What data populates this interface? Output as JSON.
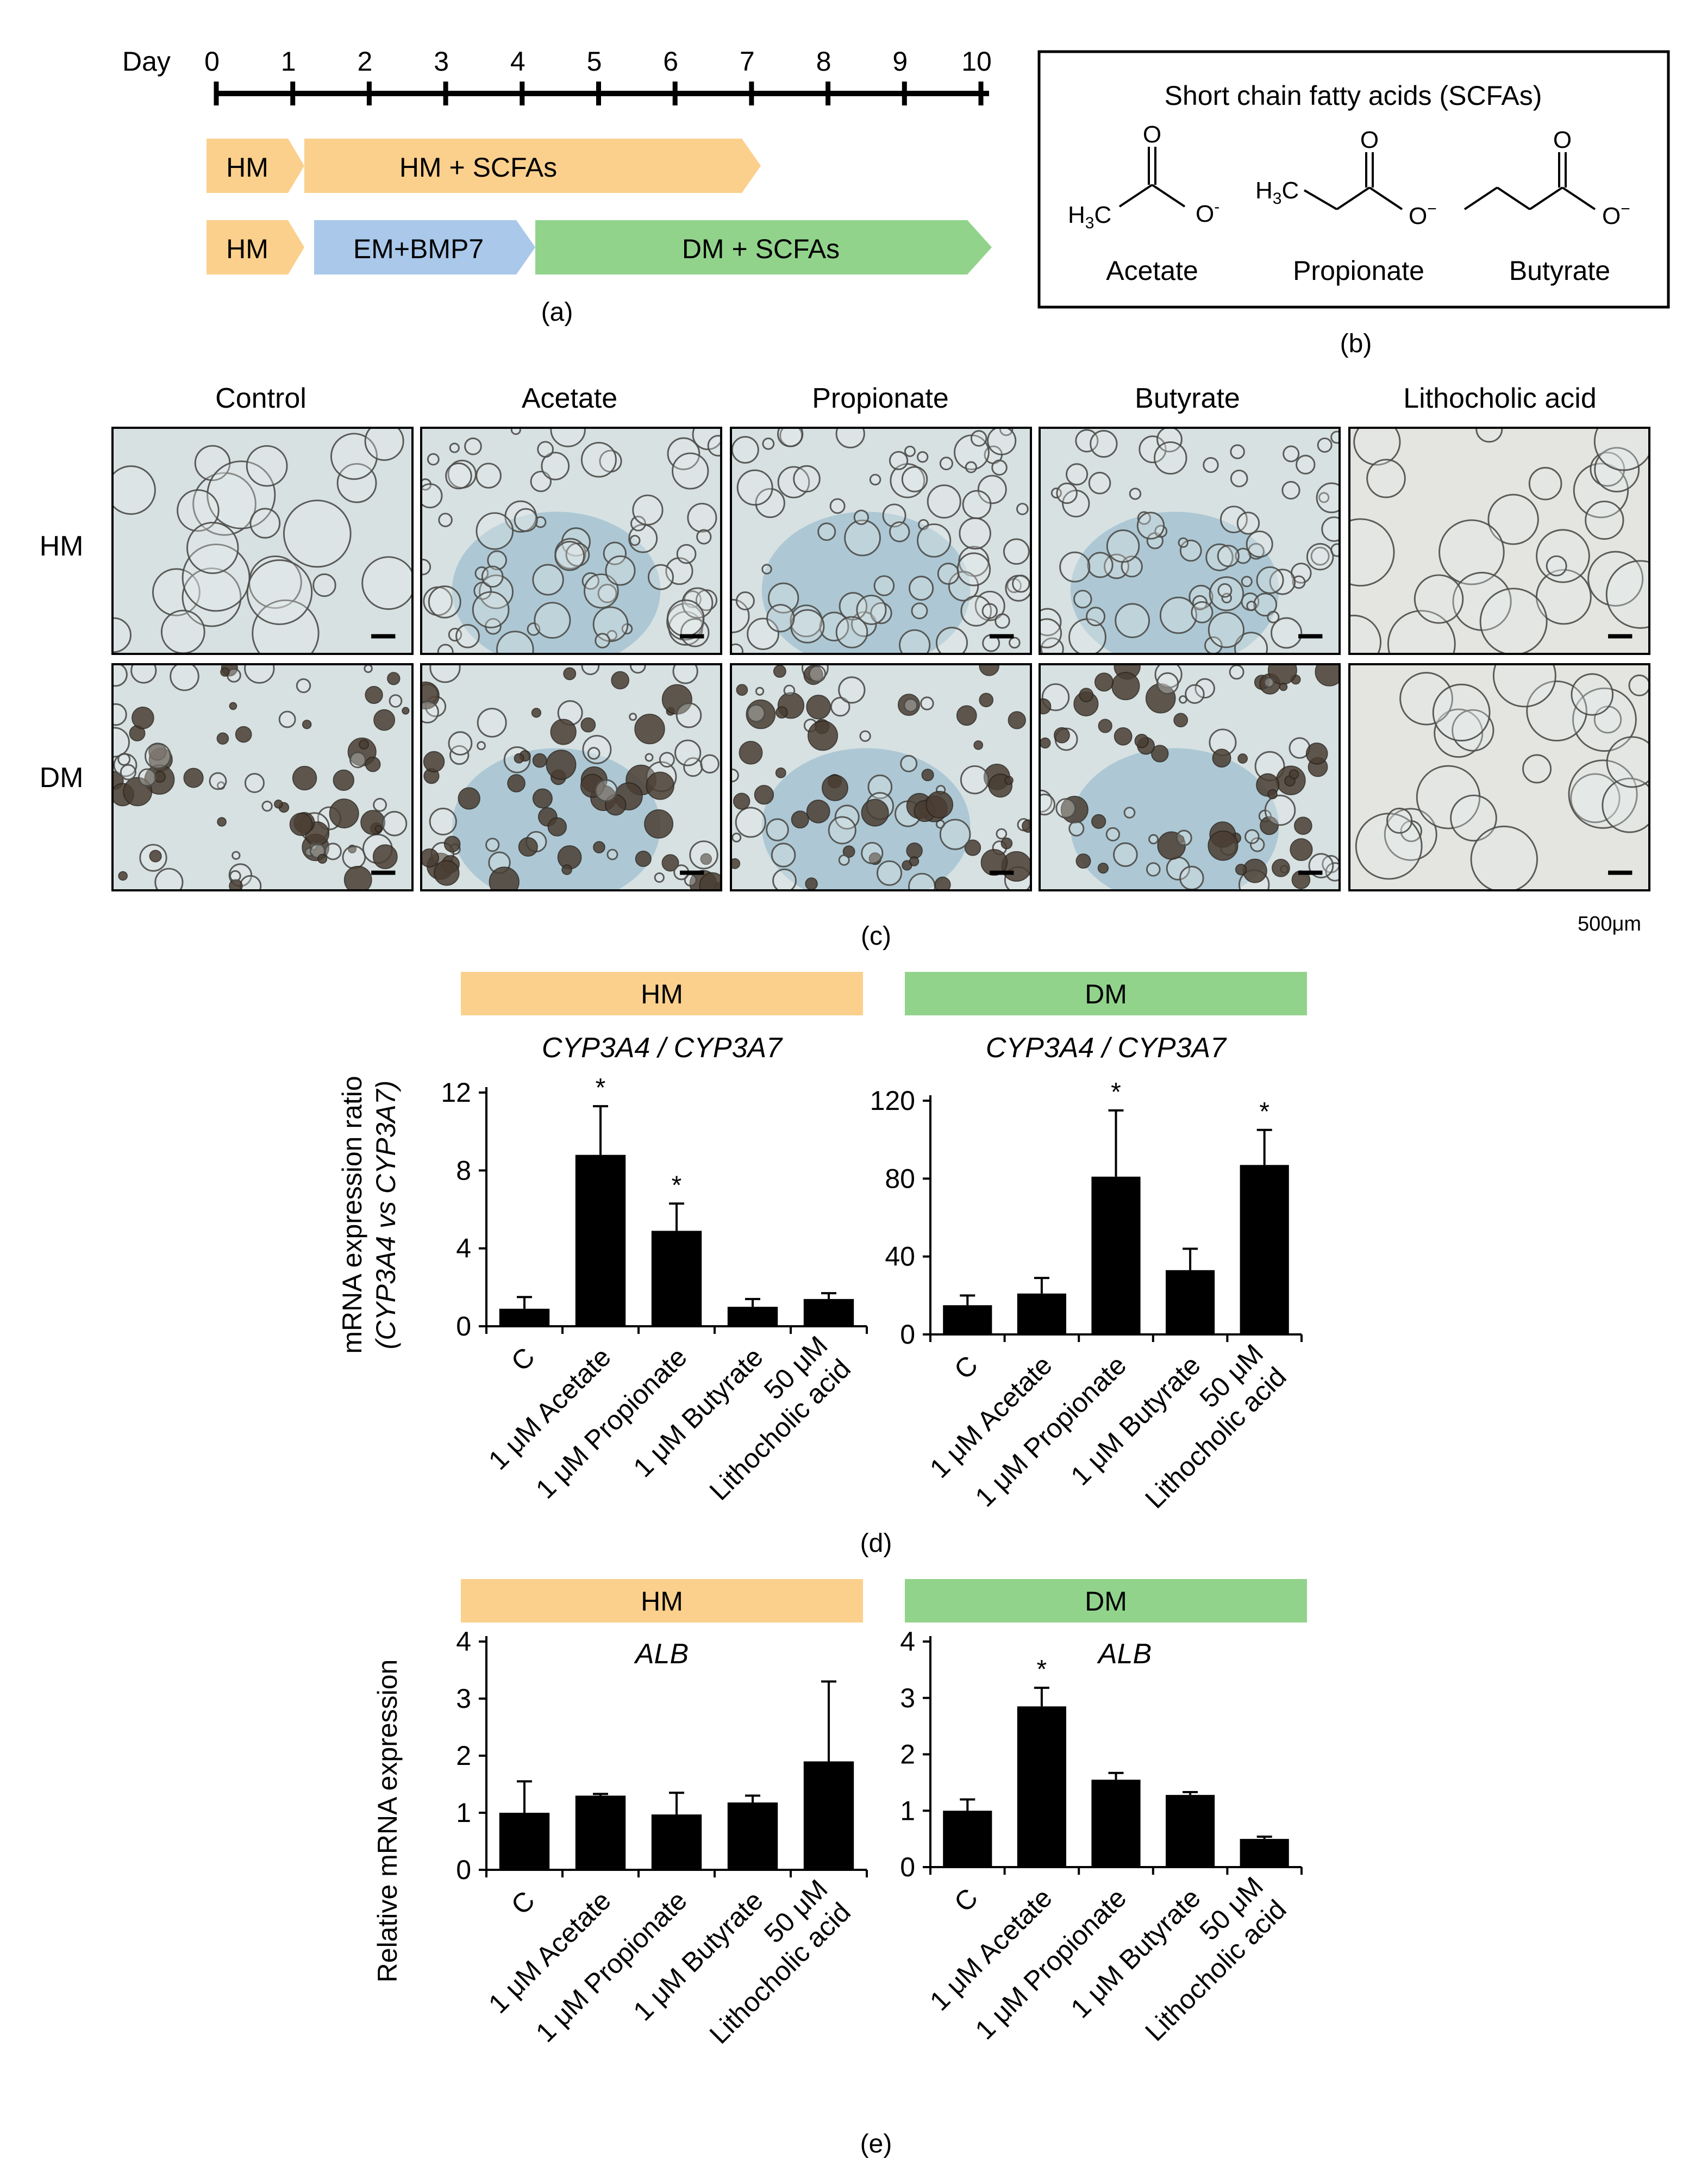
{
  "panel_a": {
    "day_label": "Day",
    "days": [
      "0",
      "1",
      "2",
      "3",
      "4",
      "5",
      "6",
      "7",
      "8",
      "9",
      "10"
    ],
    "row1": {
      "first": "HM",
      "second": "HM + SCFAs"
    },
    "row2": {
      "first": "HM",
      "second": "EM+BMP7",
      "third": "DM + SCFAs"
    },
    "caption": "(a)",
    "colors": {
      "hm": "#fbd08d",
      "em": "#a9c8ea",
      "dm": "#92d38c"
    }
  },
  "panel_b": {
    "title": "Short chain fatty acids (SCFAs)",
    "compounds": [
      "Acetate",
      "Propionate",
      "Butyrate"
    ],
    "caption": "(b)"
  },
  "panel_c": {
    "columns": [
      "Control",
      "Acetate",
      "Propionate",
      "Butyrate",
      "Lithocholic acid"
    ],
    "rows": [
      "HM",
      "DM"
    ],
    "scale_label": "500μm",
    "caption": "(c)"
  },
  "panel_d": {
    "headers": [
      "HM",
      "DM"
    ],
    "gene_title": "CYP3A4 / CYP3A7",
    "ylabel_line1": "mRNA expression ratio",
    "ylabel_line2": "(CYP3A4 vs CYP3A7)",
    "caption": "(d)"
  },
  "panel_e": {
    "headers": [
      "HM",
      "DM"
    ],
    "gene_title": "ALB",
    "ylabel": "Relative mRNA expression",
    "caption": "(e)"
  },
  "chart_data": [
    {
      "type": "bar",
      "id": "d-hm",
      "title": "CYP3A4 / CYP3A7",
      "group": "HM",
      "categories": [
        "C",
        "1 μM Acetate",
        "1 μM Propionate",
        "1 μM Butyrate",
        "50 μM Lithocholic acid"
      ],
      "values": [
        0.9,
        8.8,
        4.9,
        1.0,
        1.4
      ],
      "errors": [
        0.6,
        2.5,
        1.4,
        0.4,
        0.3
      ],
      "significant": [
        false,
        true,
        true,
        false,
        false
      ],
      "ylim": [
        0,
        12
      ],
      "yticks": [
        0,
        4,
        8,
        12
      ]
    },
    {
      "type": "bar",
      "id": "d-dm",
      "title": "CYP3A4 / CYP3A7",
      "group": "DM",
      "categories": [
        "C",
        "1 μM Acetate",
        "1 μM Propionate",
        "1 μM Butyrate",
        "50 μM Lithocholic acid"
      ],
      "values": [
        15,
        21,
        81,
        33,
        87
      ],
      "errors": [
        5,
        8,
        34,
        11,
        18
      ],
      "significant": [
        false,
        false,
        true,
        false,
        true
      ],
      "ylim": [
        0,
        120
      ],
      "yticks": [
        0,
        40,
        80,
        120
      ]
    },
    {
      "type": "bar",
      "id": "e-hm",
      "title": "ALB",
      "group": "HM",
      "categories": [
        "C",
        "1 μM Acetate",
        "1 μM Propionate",
        "1 μM Butyrate",
        "50 μM Lithocholic acid"
      ],
      "values": [
        1.0,
        1.3,
        0.97,
        1.18,
        1.9
      ],
      "errors": [
        0.55,
        0.03,
        0.38,
        0.12,
        1.4
      ],
      "significant": [
        false,
        false,
        false,
        false,
        false
      ],
      "ylim": [
        0,
        4
      ],
      "yticks": [
        0,
        1,
        2,
        3,
        4
      ]
    },
    {
      "type": "bar",
      "id": "e-dm",
      "title": "ALB",
      "group": "DM",
      "categories": [
        "C",
        "1 μM Acetate",
        "1 μM Propionate",
        "1 μM Butyrate",
        "50 μM Lithocholic acid"
      ],
      "values": [
        1.0,
        2.85,
        1.55,
        1.28,
        0.5
      ],
      "errors": [
        0.2,
        0.33,
        0.12,
        0.05,
        0.04
      ],
      "significant": [
        false,
        true,
        false,
        false,
        false
      ],
      "ylim": [
        0,
        4
      ],
      "yticks": [
        0,
        1,
        2,
        3,
        4
      ]
    }
  ]
}
